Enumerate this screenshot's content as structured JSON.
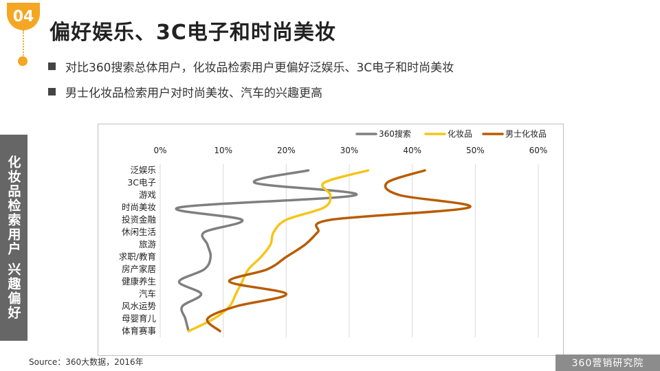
{
  "badge": {
    "number": "04"
  },
  "title": "偏好娱乐、3C电子和时尚美妆",
  "bullets": [
    "对比360搜索总体用户，化妆品检索用户更偏好泛娱乐、3C电子和时尚美妆",
    "男士化妆品检索用户对时尚美妆、汽车的兴趣更高"
  ],
  "side_label": "化妆品检索用户 兴趣偏好",
  "source": "Source：360大数据，2016年",
  "logo": "360营销研究院",
  "chart_data": {
    "type": "line",
    "orientation": "horizontal-categories",
    "categories": [
      "泛娱乐",
      "3C电子",
      "游戏",
      "时尚美妆",
      "投资金融",
      "休闲生活",
      "旅游",
      "求职/教育",
      "房产家居",
      "健康养生",
      "汽车",
      "风水运势",
      "母婴育儿",
      "体育赛事"
    ],
    "x_ticks": [
      "0%",
      "10%",
      "20%",
      "30%",
      "40%",
      "50%",
      "60%"
    ],
    "xlim": [
      0,
      60
    ],
    "grid": true,
    "legend_position": "top-right",
    "series": [
      {
        "name": "360搜索",
        "color": "#7f7f7f",
        "values": [
          23.5,
          15,
          31,
          3,
          13,
          7,
          7.5,
          8,
          7,
          3,
          6.5,
          3.5,
          4,
          4.5
        ]
      },
      {
        "name": "化妆品",
        "color": "#f5c518",
        "values": [
          33,
          26,
          27,
          26,
          20,
          18,
          17.5,
          16,
          14,
          13,
          12,
          11,
          8.5,
          4.5
        ]
      },
      {
        "name": "男士化妆品",
        "color": "#b85c00",
        "values": [
          42,
          36,
          38,
          49,
          27,
          25,
          23,
          20,
          17,
          11,
          20,
          12,
          7.5,
          9.5
        ]
      }
    ]
  }
}
